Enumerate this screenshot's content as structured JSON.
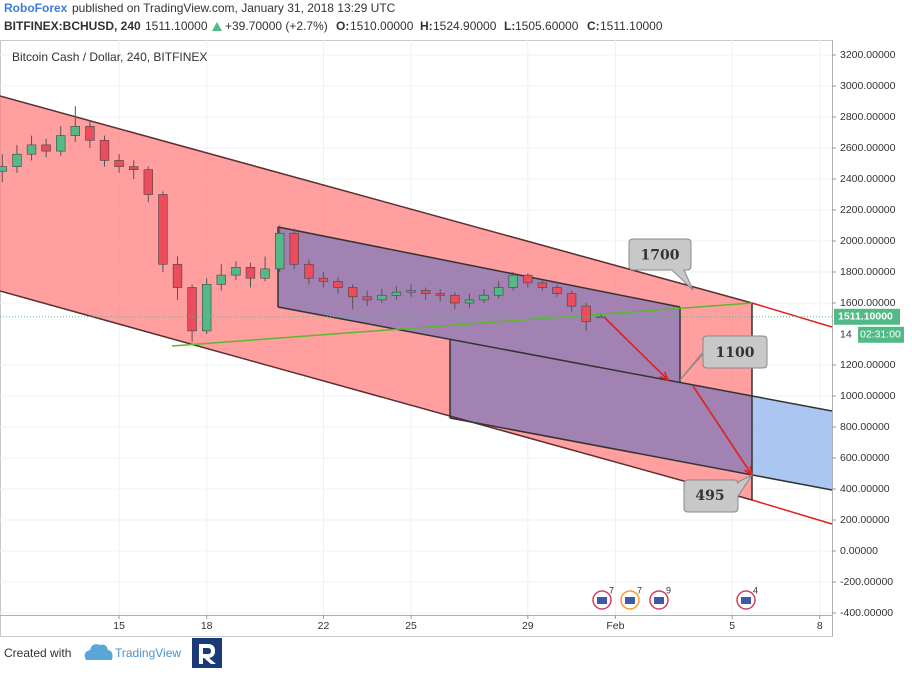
{
  "header": {
    "publisher": "RoboForex",
    "published": "published on TradingView.com, January 31, 2018 13:29 UTC",
    "symbol": "BITFINEX:BCHUSD, 240",
    "last": "1511.10000",
    "change": "+39.70000 (+2.7%)",
    "open_label": "O:",
    "open": "1510.00000",
    "high_label": "H:",
    "high": "1524.90000",
    "low_label": "L:",
    "low": "1505.60000",
    "close_label": "C:",
    "close": "1511.10000"
  },
  "chart_data": {
    "type": "candlestick",
    "title": "Bitcoin Cash / Dollar, 240, BITFINEX",
    "x": [
      11,
      11.5,
      12,
      12.5,
      13,
      13.5,
      14,
      14.5,
      15,
      15.5,
      16,
      16.5,
      17,
      17.5,
      18,
      18.5,
      19,
      19.5,
      20,
      20.5,
      21,
      21.5,
      22,
      22.5,
      23,
      23.5,
      24,
      24.5,
      25,
      25.5,
      26,
      26.5,
      27,
      27.5,
      28,
      28.5,
      29,
      29.5,
      30,
      30.5,
      31,
      31.5
    ],
    "open": [
      2450,
      2480,
      2560,
      2620,
      2580,
      2680,
      2740,
      2650,
      2520,
      2480,
      2460,
      2300,
      1850,
      1700,
      1420,
      1720,
      1780,
      1830,
      1760,
      1820,
      2050,
      1850,
      1760,
      1740,
      1700,
      1640,
      1620,
      1650,
      1670,
      1680,
      1660,
      1650,
      1600,
      1620,
      1650,
      1700,
      1780,
      1730,
      1700,
      1660,
      1580,
      1510
    ],
    "high": [
      2560,
      2620,
      2680,
      2660,
      2740,
      2870,
      2780,
      2680,
      2560,
      2520,
      2480,
      2320,
      1900,
      1720,
      1760,
      1850,
      1870,
      1860,
      1900,
      2100,
      2080,
      1880,
      1800,
      1770,
      1720,
      1680,
      1690,
      1710,
      1720,
      1700,
      1690,
      1670,
      1660,
      1690,
      1740,
      1800,
      1790,
      1750,
      1720,
      1680,
      1600,
      1524.9
    ],
    "low": [
      2380,
      2440,
      2520,
      2540,
      2550,
      2640,
      2600,
      2480,
      2440,
      2400,
      2250,
      1800,
      1620,
      1350,
      1400,
      1680,
      1750,
      1700,
      1740,
      1800,
      1820,
      1720,
      1700,
      1660,
      1560,
      1580,
      1600,
      1620,
      1640,
      1620,
      1610,
      1560,
      1570,
      1600,
      1630,
      1680,
      1700,
      1680,
      1640,
      1540,
      1420,
      1505.6
    ],
    "close": [
      2480,
      2560,
      2620,
      2580,
      2680,
      2740,
      2650,
      2520,
      2480,
      2460,
      2300,
      1850,
      1700,
      1420,
      1720,
      1780,
      1830,
      1760,
      1820,
      2050,
      1850,
      1760,
      1740,
      1700,
      1640,
      1620,
      1650,
      1670,
      1680,
      1660,
      1650,
      1600,
      1620,
      1650,
      1700,
      1780,
      1730,
      1700,
      1660,
      1580,
      1480,
      1511.1
    ],
    "up_color": "#53b987",
    "down_color": "#eb4d5c",
    "xlim": [
      10.92,
      39.42
    ],
    "xticks": [
      15,
      18,
      22,
      25,
      29,
      {
        "value": 32,
        "label": "Feb"
      },
      36,
      39
    ],
    "xtick_labels": [
      "15",
      "18",
      "22",
      "25",
      "29",
      "Feb",
      "5",
      "8"
    ],
    "ylim": [
      -412.9,
      3296.8
    ],
    "yticks": [
      {
        "value": 3200,
        "label": "3200.00000"
      },
      {
        "value": 3000,
        "label": "3000.00000"
      },
      {
        "value": 2800,
        "label": "2800.00000"
      },
      {
        "value": 2600,
        "label": "2600.00000"
      },
      {
        "value": 2400,
        "label": "2400.00000"
      },
      {
        "value": 2200,
        "label": "2200.00000"
      },
      {
        "value": 2000,
        "label": "2000.00000"
      },
      {
        "value": 1800,
        "label": "1800.00000"
      },
      {
        "value": 1600,
        "label": "1600.00000"
      },
      {
        "value": 1200,
        "label": "1200.00000"
      },
      {
        "value": 1000,
        "label": "1000.00000"
      },
      {
        "value": 800,
        "label": "800.00000"
      },
      {
        "value": 600,
        "label": "600.00000"
      },
      {
        "value": 400,
        "label": "400.00000"
      },
      {
        "value": 200,
        "label": "200.00000"
      },
      {
        "value": 0,
        "label": "0.00000"
      },
      {
        "value": -200,
        "label": "-200.00000"
      },
      {
        "value": -400,
        "label": "-400.00000"
      }
    ],
    "grid": true,
    "price_label": "1511.10000",
    "countdown": "02:31:00",
    "partial_tick": "14",
    "callouts": [
      "1700",
      "1100",
      "495"
    ],
    "events": [
      "7",
      "7",
      "9",
      "4"
    ]
  },
  "footer": {
    "created": "Created with",
    "brand": "TradingView"
  }
}
